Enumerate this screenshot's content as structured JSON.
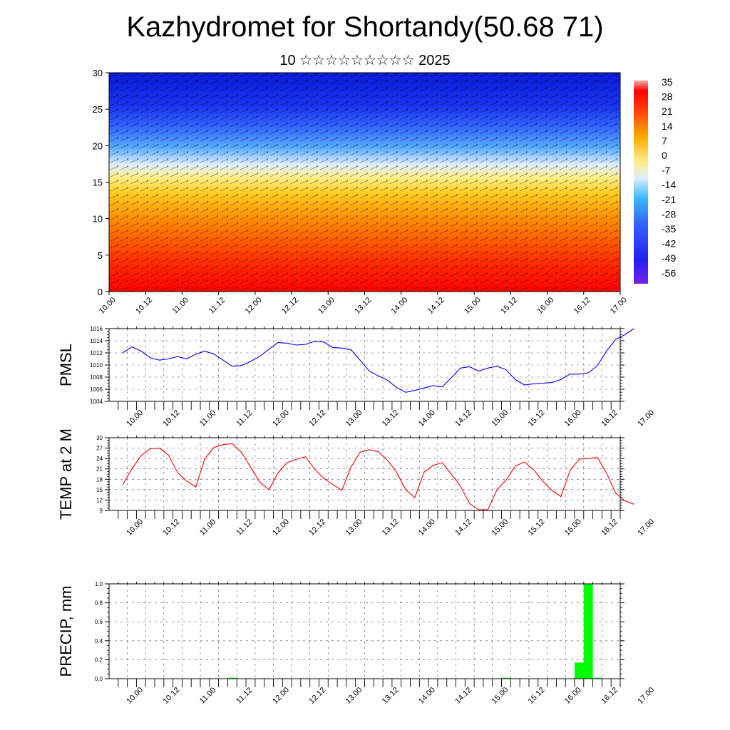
{
  "title": "Kazhydromet for Shortandy(50.68 71)",
  "subtitle": "10 ☆☆☆☆☆☆☆☆☆ 2025",
  "x_tick_labels": [
    "10.00",
    "10.12",
    "11.00",
    "11.12",
    "12.00",
    "12.12",
    "13.00",
    "13.12",
    "14.00",
    "14.12",
    "15.00",
    "15.12",
    "16.00",
    "16.12",
    "17.00"
  ],
  "colors": {
    "pmsl_line": "#0000ff",
    "temp_line": "#ff0000",
    "precip_bar": "#00ff00"
  },
  "chart_data": [
    {
      "type": "heatmap",
      "xlabel": "",
      "ylabel": "",
      "ylim": [
        0,
        30
      ],
      "y_ticks": [
        0,
        5,
        10,
        15,
        20,
        25,
        30
      ],
      "colorbar_labels": [
        "35",
        "28",
        "21",
        "14",
        "7",
        "0",
        "-7",
        "-14",
        "-21",
        "-28",
        "-35",
        "-42",
        "-49",
        "-56"
      ],
      "colormap": [
        "#ff0000",
        "#ff6600",
        "#ffaa00",
        "#ffee88",
        "#ddeeff",
        "#33bbff",
        "#3366ff",
        "#2233ee",
        "#7722ee"
      ]
    },
    {
      "type": "line",
      "ylabel": "PMSL",
      "ylim": [
        1004,
        1016
      ],
      "y_ticks": [
        1004,
        1006,
        1008,
        1010,
        1012,
        1014,
        1016
      ],
      "x_step_hours": 3,
      "series": [
        {
          "values": [
            1012.0,
            1013.0,
            1012.3,
            1011.2,
            1010.8,
            1011.0,
            1011.4,
            1011.0,
            1011.8,
            1012.3,
            1011.8,
            1010.8,
            1009.8,
            1009.9,
            1010.6,
            1011.4,
            1012.6,
            1013.7,
            1013.6,
            1013.3,
            1013.4,
            1013.9,
            1013.8,
            1012.9,
            1012.8,
            1012.5,
            1010.8,
            1009.0,
            1008.2,
            1007.5,
            1006.3,
            1005.5,
            1005.8,
            1006.2,
            1006.6,
            1006.4,
            1007.9,
            1009.5,
            1009.7,
            1009.0,
            1009.5,
            1009.8,
            1009.2,
            1007.6,
            1006.7,
            1006.9,
            1007.0,
            1007.1,
            1007.6,
            1008.5,
            1008.5,
            1008.7,
            1009.9,
            1012.3,
            1014.2,
            1015.0,
            1016.0
          ]
        }
      ]
    },
    {
      "type": "line",
      "ylabel": "TEMP at 2 M",
      "ylim": [
        9,
        30
      ],
      "y_ticks": [
        9,
        12,
        15,
        18,
        21,
        24,
        27,
        30
      ],
      "x_step_hours": 3,
      "series": [
        {
          "values": [
            16.5,
            21.0,
            24.8,
            26.8,
            27.0,
            25.0,
            20.0,
            17.5,
            15.8,
            24.0,
            27.2,
            28.0,
            28.3,
            25.8,
            21.5,
            17.2,
            15.0,
            19.8,
            22.8,
            23.8,
            24.5,
            21.0,
            18.3,
            16.5,
            14.8,
            21.5,
            25.8,
            26.5,
            26.0,
            23.5,
            20.0,
            15.0,
            12.7,
            20.0,
            22.0,
            22.8,
            19.5,
            16.0,
            11.0,
            9.2,
            9.2,
            15.0,
            17.8,
            21.8,
            23.0,
            20.8,
            17.5,
            14.8,
            13.0,
            20.5,
            23.8,
            24.0,
            24.3,
            19.8,
            14.0,
            11.8,
            10.8
          ]
        }
      ]
    },
    {
      "type": "bar",
      "ylabel": "PRECIP, mm",
      "ylim": [
        0,
        1.0
      ],
      "y_ticks": [
        0.0,
        0.2,
        0.4,
        0.6,
        0.8,
        1.0
      ],
      "x_step_hours": 3,
      "values": [
        0,
        0,
        0,
        0,
        0,
        0,
        0,
        0,
        0,
        0,
        0,
        0,
        0.01,
        0,
        0,
        0,
        0,
        0,
        0,
        0,
        0,
        0,
        0,
        0,
        0,
        0,
        0,
        0,
        0,
        0,
        0,
        0,
        0,
        0,
        0,
        0,
        0,
        0,
        0,
        0,
        0,
        0,
        0.01,
        0,
        0,
        0,
        0,
        0,
        0,
        0,
        0.17,
        1.0,
        0.01,
        0,
        0,
        0
      ]
    }
  ]
}
